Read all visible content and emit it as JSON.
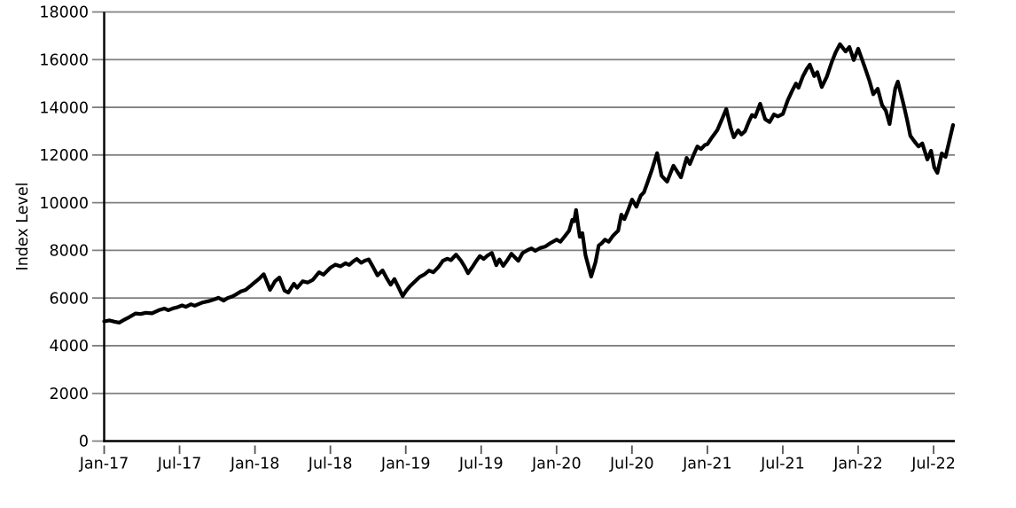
{
  "chart_data": {
    "type": "line",
    "title": "",
    "xlabel": "",
    "ylabel": "Index Level",
    "x_unit": "months since Jan-2017",
    "legend": "none",
    "grid": "horizontal",
    "ylim": [
      0,
      18000
    ],
    "y_ticks": [
      0,
      2000,
      4000,
      6000,
      8000,
      10000,
      12000,
      14000,
      16000,
      18000
    ],
    "x_tick_positions_months": [
      0,
      6,
      12,
      18,
      24,
      30,
      36,
      42,
      48,
      54,
      60,
      66
    ],
    "x_tick_labels": [
      "Jan-17",
      "Jul-17",
      "Jan-18",
      "Jul-18",
      "Jan-19",
      "Jul-19",
      "Jan-20",
      "Jul-20",
      "Jan-21",
      "Jul-21",
      "Jan-22",
      "Jul-22"
    ],
    "colors": {
      "line": "#000000",
      "grid": "#808080",
      "spine": "#000000",
      "tick": "#555555"
    },
    "line_width": 4.2,
    "series": [
      {
        "name": "Index Level",
        "points": [
          [
            0,
            5020
          ],
          [
            0.4,
            5060
          ],
          [
            0.8,
            5010
          ],
          [
            1.2,
            4970
          ],
          [
            1.6,
            5090
          ],
          [
            2.0,
            5200
          ],
          [
            2.5,
            5350
          ],
          [
            2.9,
            5330
          ],
          [
            3.3,
            5380
          ],
          [
            3.8,
            5360
          ],
          [
            4.4,
            5500
          ],
          [
            4.8,
            5560
          ],
          [
            5.1,
            5490
          ],
          [
            5.5,
            5570
          ],
          [
            5.8,
            5610
          ],
          [
            6.2,
            5690
          ],
          [
            6.5,
            5630
          ],
          [
            6.9,
            5740
          ],
          [
            7.2,
            5680
          ],
          [
            7.8,
            5810
          ],
          [
            8.3,
            5870
          ],
          [
            8.8,
            5950
          ],
          [
            9.1,
            6010
          ],
          [
            9.5,
            5890
          ],
          [
            9.8,
            5990
          ],
          [
            10.2,
            6070
          ],
          [
            10.5,
            6150
          ],
          [
            10.9,
            6280
          ],
          [
            11.25,
            6340
          ],
          [
            11.7,
            6530
          ],
          [
            12.0,
            6670
          ],
          [
            12.35,
            6820
          ],
          [
            12.7,
            7000
          ],
          [
            13.2,
            6340
          ],
          [
            13.6,
            6710
          ],
          [
            13.95,
            6860
          ],
          [
            14.35,
            6310
          ],
          [
            14.65,
            6230
          ],
          [
            15.1,
            6600
          ],
          [
            15.35,
            6430
          ],
          [
            15.8,
            6700
          ],
          [
            16.2,
            6650
          ],
          [
            16.6,
            6760
          ],
          [
            17.1,
            7080
          ],
          [
            17.45,
            6980
          ],
          [
            18.0,
            7270
          ],
          [
            18.4,
            7400
          ],
          [
            18.8,
            7330
          ],
          [
            19.2,
            7460
          ],
          [
            19.5,
            7390
          ],
          [
            19.8,
            7530
          ],
          [
            20.1,
            7640
          ],
          [
            20.45,
            7480
          ],
          [
            20.75,
            7570
          ],
          [
            21.05,
            7620
          ],
          [
            21.4,
            7300
          ],
          [
            21.75,
            6950
          ],
          [
            22.15,
            7160
          ],
          [
            22.5,
            6820
          ],
          [
            22.8,
            6560
          ],
          [
            23.1,
            6800
          ],
          [
            23.45,
            6420
          ],
          [
            23.75,
            6080
          ],
          [
            24.0,
            6280
          ],
          [
            24.3,
            6480
          ],
          [
            24.7,
            6680
          ],
          [
            25.1,
            6880
          ],
          [
            25.5,
            7000
          ],
          [
            25.85,
            7150
          ],
          [
            26.2,
            7080
          ],
          [
            26.6,
            7300
          ],
          [
            26.95,
            7560
          ],
          [
            27.3,
            7650
          ],
          [
            27.6,
            7590
          ],
          [
            28.0,
            7820
          ],
          [
            28.4,
            7560
          ],
          [
            28.7,
            7300
          ],
          [
            28.95,
            7040
          ],
          [
            29.3,
            7300
          ],
          [
            29.6,
            7550
          ],
          [
            29.9,
            7760
          ],
          [
            30.2,
            7640
          ],
          [
            30.5,
            7780
          ],
          [
            30.85,
            7890
          ],
          [
            31.2,
            7380
          ],
          [
            31.45,
            7620
          ],
          [
            31.75,
            7350
          ],
          [
            32.1,
            7600
          ],
          [
            32.4,
            7860
          ],
          [
            32.7,
            7700
          ],
          [
            32.95,
            7560
          ],
          [
            33.3,
            7890
          ],
          [
            33.7,
            8010
          ],
          [
            34.0,
            8080
          ],
          [
            34.3,
            7980
          ],
          [
            34.7,
            8100
          ],
          [
            35.1,
            8160
          ],
          [
            35.5,
            8300
          ],
          [
            36.0,
            8450
          ],
          [
            36.3,
            8360
          ],
          [
            36.7,
            8620
          ],
          [
            37.0,
            8830
          ],
          [
            37.25,
            9280
          ],
          [
            37.4,
            9220
          ],
          [
            37.55,
            9690
          ],
          [
            37.7,
            9100
          ],
          [
            37.85,
            8570
          ],
          [
            38.05,
            8720
          ],
          [
            38.3,
            7800
          ],
          [
            38.75,
            6900
          ],
          [
            39.1,
            7500
          ],
          [
            39.35,
            8200
          ],
          [
            39.6,
            8300
          ],
          [
            39.85,
            8450
          ],
          [
            40.15,
            8360
          ],
          [
            40.5,
            8620
          ],
          [
            40.9,
            8830
          ],
          [
            41.15,
            9500
          ],
          [
            41.4,
            9310
          ],
          [
            41.7,
            9700
          ],
          [
            42.0,
            10130
          ],
          [
            42.35,
            9830
          ],
          [
            42.7,
            10300
          ],
          [
            42.95,
            10430
          ],
          [
            43.2,
            10800
          ],
          [
            43.6,
            11400
          ],
          [
            44.0,
            12080
          ],
          [
            44.35,
            11130
          ],
          [
            44.8,
            10880
          ],
          [
            45.3,
            11550
          ],
          [
            45.9,
            11060
          ],
          [
            46.35,
            11880
          ],
          [
            46.6,
            11620
          ],
          [
            46.9,
            12000
          ],
          [
            47.2,
            12360
          ],
          [
            47.5,
            12250
          ],
          [
            47.8,
            12420
          ],
          [
            48.0,
            12450
          ],
          [
            48.35,
            12730
          ],
          [
            48.8,
            13050
          ],
          [
            49.2,
            13550
          ],
          [
            49.5,
            13930
          ],
          [
            49.85,
            13150
          ],
          [
            50.1,
            12740
          ],
          [
            50.45,
            13040
          ],
          [
            50.7,
            12860
          ],
          [
            51.0,
            13000
          ],
          [
            51.3,
            13400
          ],
          [
            51.55,
            13680
          ],
          [
            51.8,
            13600
          ],
          [
            52.2,
            14150
          ],
          [
            52.6,
            13500
          ],
          [
            52.95,
            13380
          ],
          [
            53.3,
            13700
          ],
          [
            53.6,
            13620
          ],
          [
            54.0,
            13720
          ],
          [
            54.4,
            14300
          ],
          [
            54.75,
            14700
          ],
          [
            55.05,
            15000
          ],
          [
            55.25,
            14820
          ],
          [
            55.6,
            15300
          ],
          [
            55.9,
            15600
          ],
          [
            56.15,
            15790
          ],
          [
            56.5,
            15310
          ],
          [
            56.75,
            15480
          ],
          [
            57.1,
            14850
          ],
          [
            57.5,
            15280
          ],
          [
            57.9,
            15900
          ],
          [
            58.2,
            16300
          ],
          [
            58.55,
            16650
          ],
          [
            59.0,
            16340
          ],
          [
            59.3,
            16530
          ],
          [
            59.65,
            15980
          ],
          [
            60.0,
            16460
          ],
          [
            60.5,
            15720
          ],
          [
            60.9,
            15100
          ],
          [
            61.2,
            14550
          ],
          [
            61.55,
            14780
          ],
          [
            61.9,
            14100
          ],
          [
            62.2,
            13860
          ],
          [
            62.5,
            13300
          ],
          [
            62.95,
            14790
          ],
          [
            63.15,
            15080
          ],
          [
            63.6,
            14150
          ],
          [
            63.9,
            13450
          ],
          [
            64.15,
            12810
          ],
          [
            64.5,
            12550
          ],
          [
            64.8,
            12360
          ],
          [
            65.1,
            12490
          ],
          [
            65.5,
            11810
          ],
          [
            65.8,
            12180
          ],
          [
            66.05,
            11480
          ],
          [
            66.3,
            11250
          ],
          [
            66.65,
            12070
          ],
          [
            66.95,
            11920
          ],
          [
            67.2,
            12480
          ],
          [
            67.55,
            13260
          ]
        ]
      }
    ]
  }
}
